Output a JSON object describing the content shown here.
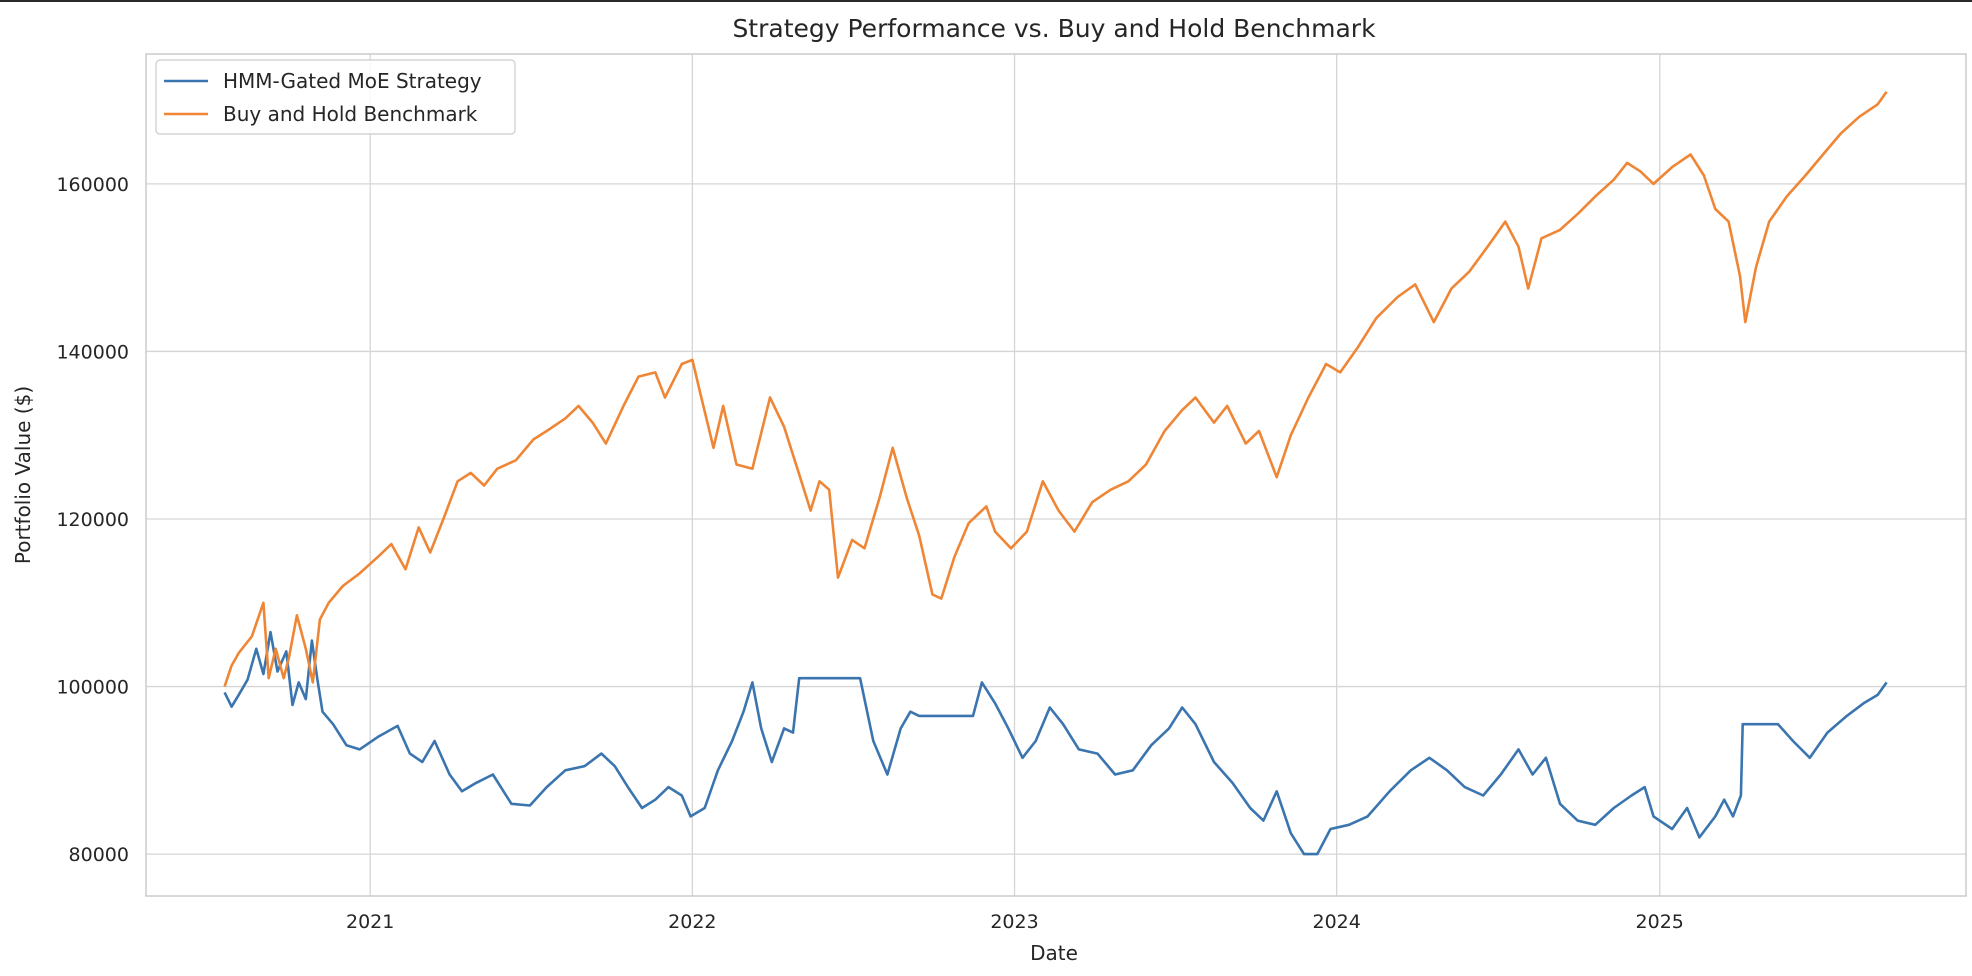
{
  "chart_data": {
    "type": "line",
    "title": "Strategy Performance vs. Buy and Hold Benchmark",
    "xlabel": "Date",
    "ylabel": "Portfolio Value ($)",
    "x_ticks": [
      "2021",
      "2022",
      "2023",
      "2024",
      "2025"
    ],
    "y_ticks": [
      80000,
      100000,
      120000,
      140000,
      160000
    ],
    "xlim": [
      "2020-04-22",
      "2025-12-14"
    ],
    "ylim": [
      75000,
      175500
    ],
    "grid": true,
    "legend_position": "top-left",
    "colors": {
      "strategy": "#3b75af",
      "benchmark": "#ef8636",
      "grid": "#d5d5d5",
      "frame": "#cccccc"
    },
    "series": [
      {
        "name": "HMM-Gated MoE Strategy",
        "color": "#3b75af",
        "points": [
          [
            "2020-07-20",
            99300
          ],
          [
            "2020-07-28",
            97600
          ],
          [
            "2020-08-05",
            99000
          ],
          [
            "2020-08-15",
            100800
          ],
          [
            "2020-08-25",
            104500
          ],
          [
            "2020-09-02",
            101500
          ],
          [
            "2020-09-10",
            106500
          ],
          [
            "2020-09-18",
            101800
          ],
          [
            "2020-09-28",
            104200
          ],
          [
            "2020-10-05",
            97800
          ],
          [
            "2020-10-12",
            100500
          ],
          [
            "2020-10-20",
            98500
          ],
          [
            "2020-10-27",
            105500
          ],
          [
            "2020-11-02",
            101000
          ],
          [
            "2020-11-08",
            97000
          ],
          [
            "2020-11-20",
            95500
          ],
          [
            "2020-12-05",
            93000
          ],
          [
            "2020-12-20",
            92500
          ],
          [
            "2021-01-10",
            94000
          ],
          [
            "2021-02-01",
            95300
          ],
          [
            "2021-02-15",
            92000
          ],
          [
            "2021-03-01",
            91000
          ],
          [
            "2021-03-15",
            93500
          ],
          [
            "2021-04-01",
            89500
          ],
          [
            "2021-04-15",
            87500
          ],
          [
            "2021-05-01",
            88500
          ],
          [
            "2021-05-20",
            89500
          ],
          [
            "2021-06-10",
            86000
          ],
          [
            "2021-07-01",
            85800
          ],
          [
            "2021-07-20",
            88000
          ],
          [
            "2021-08-10",
            90000
          ],
          [
            "2021-09-01",
            90500
          ],
          [
            "2021-09-20",
            92000
          ],
          [
            "2021-10-05",
            90500
          ],
          [
            "2021-10-20",
            88000
          ],
          [
            "2021-11-05",
            85500
          ],
          [
            "2021-11-20",
            86500
          ],
          [
            "2021-12-05",
            88000
          ],
          [
            "2021-12-20",
            87000
          ],
          [
            "2021-12-30",
            84500
          ],
          [
            "2022-01-15",
            85500
          ],
          [
            "2022-01-30",
            90000
          ],
          [
            "2022-02-15",
            93500
          ],
          [
            "2022-02-28",
            97000
          ],
          [
            "2022-03-10",
            100500
          ],
          [
            "2022-03-20",
            95000
          ],
          [
            "2022-04-01",
            91000
          ],
          [
            "2022-04-15",
            95000
          ],
          [
            "2022-04-25",
            94500
          ],
          [
            "2022-05-02",
            101000
          ],
          [
            "2022-07-10",
            101000
          ],
          [
            "2022-07-25",
            93500
          ],
          [
            "2022-08-10",
            89500
          ],
          [
            "2022-08-25",
            95000
          ],
          [
            "2022-09-05",
            97000
          ],
          [
            "2022-09-15",
            96500
          ],
          [
            "2022-11-15",
            96500
          ],
          [
            "2022-11-25",
            100500
          ],
          [
            "2022-12-10",
            98000
          ],
          [
            "2022-12-25",
            95000
          ],
          [
            "2023-01-10",
            91500
          ],
          [
            "2023-01-25",
            93500
          ],
          [
            "2023-02-10",
            97500
          ],
          [
            "2023-02-25",
            95500
          ],
          [
            "2023-03-15",
            92500
          ],
          [
            "2023-04-05",
            92000
          ],
          [
            "2023-04-25",
            89500
          ],
          [
            "2023-05-15",
            90000
          ],
          [
            "2023-06-05",
            93000
          ],
          [
            "2023-06-25",
            95000
          ],
          [
            "2023-07-10",
            97500
          ],
          [
            "2023-07-25",
            95500
          ],
          [
            "2023-08-15",
            91000
          ],
          [
            "2023-09-05",
            88500
          ],
          [
            "2023-09-25",
            85500
          ],
          [
            "2023-10-10",
            84000
          ],
          [
            "2023-10-25",
            87500
          ],
          [
            "2023-11-10",
            82500
          ],
          [
            "2023-11-25",
            80000
          ],
          [
            "2023-12-10",
            80000
          ],
          [
            "2023-12-25",
            83000
          ],
          [
            "2024-01-15",
            83500
          ],
          [
            "2024-02-05",
            84500
          ],
          [
            "2024-03-01",
            87500
          ],
          [
            "2024-03-25",
            90000
          ],
          [
            "2024-04-15",
            91500
          ],
          [
            "2024-05-05",
            90000
          ],
          [
            "2024-05-25",
            88000
          ],
          [
            "2024-06-15",
            87000
          ],
          [
            "2024-07-05",
            89500
          ],
          [
            "2024-07-25",
            92500
          ],
          [
            "2024-08-10",
            89500
          ],
          [
            "2024-08-25",
            91500
          ],
          [
            "2024-09-10",
            86000
          ],
          [
            "2024-09-30",
            84000
          ],
          [
            "2024-10-20",
            83500
          ],
          [
            "2024-11-10",
            85500
          ],
          [
            "2024-11-30",
            87000
          ],
          [
            "2024-12-15",
            88000
          ],
          [
            "2024-12-25",
            84500
          ],
          [
            "2025-01-15",
            83000
          ],
          [
            "2025-02-01",
            85500
          ],
          [
            "2025-02-15",
            82000
          ],
          [
            "2025-03-05",
            84500
          ],
          [
            "2025-03-15",
            86500
          ],
          [
            "2025-03-25",
            84500
          ],
          [
            "2025-04-03",
            87000
          ],
          [
            "2025-04-05",
            95500
          ],
          [
            "2025-05-15",
            95500
          ],
          [
            "2025-06-01",
            93500
          ],
          [
            "2025-06-20",
            91500
          ],
          [
            "2025-07-10",
            94500
          ],
          [
            "2025-08-01",
            96500
          ],
          [
            "2025-08-20",
            98000
          ],
          [
            "2025-09-05",
            99000
          ],
          [
            "2025-09-15",
            100500
          ]
        ]
      },
      {
        "name": "Buy and Hold Benchmark",
        "color": "#ef8636",
        "points": [
          [
            "2020-07-20",
            100000
          ],
          [
            "2020-07-28",
            102500
          ],
          [
            "2020-08-05",
            104000
          ],
          [
            "2020-08-20",
            106000
          ],
          [
            "2020-09-02",
            110000
          ],
          [
            "2020-09-08",
            101000
          ],
          [
            "2020-09-16",
            104500
          ],
          [
            "2020-09-25",
            101000
          ],
          [
            "2020-10-01",
            103500
          ],
          [
            "2020-10-10",
            108500
          ],
          [
            "2020-10-20",
            104500
          ],
          [
            "2020-10-28",
            100500
          ],
          [
            "2020-11-05",
            108000
          ],
          [
            "2020-11-15",
            110000
          ],
          [
            "2020-12-01",
            112000
          ],
          [
            "2020-12-20",
            113500
          ],
          [
            "2021-01-10",
            115500
          ],
          [
            "2021-01-25",
            117000
          ],
          [
            "2021-02-10",
            114000
          ],
          [
            "2021-02-25",
            119000
          ],
          [
            "2021-03-10",
            116000
          ],
          [
            "2021-03-25",
            120000
          ],
          [
            "2021-04-10",
            124500
          ],
          [
            "2021-04-25",
            125500
          ],
          [
            "2021-05-10",
            124000
          ],
          [
            "2021-05-25",
            126000
          ],
          [
            "2021-06-15",
            127000
          ],
          [
            "2021-07-05",
            129500
          ],
          [
            "2021-07-20",
            130500
          ],
          [
            "2021-08-10",
            132000
          ],
          [
            "2021-08-25",
            133500
          ],
          [
            "2021-09-10",
            131500
          ],
          [
            "2021-09-25",
            129000
          ],
          [
            "2021-10-15",
            133500
          ],
          [
            "2021-11-01",
            137000
          ],
          [
            "2021-11-20",
            137500
          ],
          [
            "2021-12-01",
            134500
          ],
          [
            "2021-12-20",
            138500
          ],
          [
            "2022-01-01",
            139000
          ],
          [
            "2022-01-10",
            135000
          ],
          [
            "2022-01-25",
            128500
          ],
          [
            "2022-02-05",
            133500
          ],
          [
            "2022-02-20",
            126500
          ],
          [
            "2022-03-10",
            126000
          ],
          [
            "2022-03-30",
            134500
          ],
          [
            "2022-04-15",
            131000
          ],
          [
            "2022-04-30",
            126000
          ],
          [
            "2022-05-15",
            121000
          ],
          [
            "2022-05-25",
            124500
          ],
          [
            "2022-06-05",
            123500
          ],
          [
            "2022-06-15",
            113000
          ],
          [
            "2022-07-01",
            117500
          ],
          [
            "2022-07-15",
            116500
          ],
          [
            "2022-08-01",
            122500
          ],
          [
            "2022-08-16",
            128500
          ],
          [
            "2022-09-01",
            122500
          ],
          [
            "2022-09-15",
            118000
          ],
          [
            "2022-09-30",
            111000
          ],
          [
            "2022-10-10",
            110500
          ],
          [
            "2022-10-25",
            115500
          ],
          [
            "2022-11-10",
            119500
          ],
          [
            "2022-11-30",
            121500
          ],
          [
            "2022-12-10",
            118500
          ],
          [
            "2022-12-28",
            116500
          ],
          [
            "2023-01-15",
            118500
          ],
          [
            "2023-02-02",
            124500
          ],
          [
            "2023-02-20",
            121000
          ],
          [
            "2023-03-10",
            118500
          ],
          [
            "2023-03-30",
            122000
          ],
          [
            "2023-04-20",
            123500
          ],
          [
            "2023-05-10",
            124500
          ],
          [
            "2023-05-30",
            126500
          ],
          [
            "2023-06-20",
            130500
          ],
          [
            "2023-07-10",
            133000
          ],
          [
            "2023-07-25",
            134500
          ],
          [
            "2023-08-15",
            131500
          ],
          [
            "2023-08-30",
            133500
          ],
          [
            "2023-09-20",
            129000
          ],
          [
            "2023-10-05",
            130500
          ],
          [
            "2023-10-25",
            125000
          ],
          [
            "2023-11-10",
            130000
          ],
          [
            "2023-11-30",
            134500
          ],
          [
            "2023-12-20",
            138500
          ],
          [
            "2024-01-05",
            137500
          ],
          [
            "2024-01-25",
            140500
          ],
          [
            "2024-02-15",
            144000
          ],
          [
            "2024-03-10",
            146500
          ],
          [
            "2024-03-30",
            148000
          ],
          [
            "2024-04-20",
            143500
          ],
          [
            "2024-05-10",
            147500
          ],
          [
            "2024-05-30",
            149500
          ],
          [
            "2024-06-20",
            152500
          ],
          [
            "2024-07-10",
            155500
          ],
          [
            "2024-07-25",
            152500
          ],
          [
            "2024-08-05",
            147500
          ],
          [
            "2024-08-20",
            153500
          ],
          [
            "2024-09-10",
            154500
          ],
          [
            "2024-10-01",
            156500
          ],
          [
            "2024-10-20",
            158500
          ],
          [
            "2024-11-10",
            160500
          ],
          [
            "2024-11-25",
            162500
          ],
          [
            "2024-12-10",
            161500
          ],
          [
            "2024-12-25",
            160000
          ],
          [
            "2025-01-15",
            162000
          ],
          [
            "2025-02-05",
            163500
          ],
          [
            "2025-02-20",
            161000
          ],
          [
            "2025-03-05",
            157000
          ],
          [
            "2025-03-20",
            155500
          ],
          [
            "2025-04-02",
            149000
          ],
          [
            "2025-04-08",
            143500
          ],
          [
            "2025-04-20",
            150000
          ],
          [
            "2025-05-05",
            155500
          ],
          [
            "2025-05-25",
            158500
          ],
          [
            "2025-06-15",
            161000
          ],
          [
            "2025-07-05",
            163500
          ],
          [
            "2025-07-25",
            166000
          ],
          [
            "2025-08-15",
            168000
          ],
          [
            "2025-09-05",
            169500
          ],
          [
            "2025-09-15",
            171000
          ]
        ]
      }
    ]
  }
}
